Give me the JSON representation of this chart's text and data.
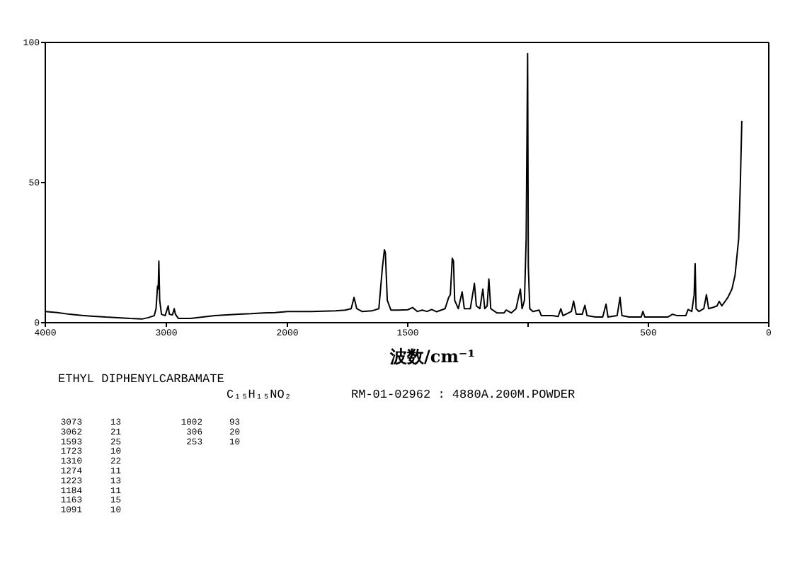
{
  "chart_data": [
    {
      "type": "line",
      "xlim": [
        4000,
        2000
      ],
      "xticks": [
        4000,
        3000,
        2000
      ],
      "ylim": [
        0,
        100
      ],
      "yticks": [
        0,
        50,
        100
      ],
      "marker": "none",
      "line_style": "solid",
      "series": [
        {
          "color": "#000000",
          "x": [
            4000,
            3900,
            3800,
            3700,
            3600,
            3500,
            3400,
            3300,
            3200,
            3150,
            3100,
            3085,
            3073,
            3067,
            3062,
            3055,
            3040,
            3010,
            2985,
            2975,
            2950,
            2935,
            2925,
            2900,
            2800,
            2700,
            2600,
            2500,
            2400,
            2300,
            2200,
            2100,
            2000
          ],
          "values": [
            4,
            3.6,
            3,
            2.6,
            2.3,
            2,
            1.8,
            1.5,
            1.3,
            1.8,
            2.5,
            5,
            13,
            12,
            22,
            8,
            3,
            2.5,
            6,
            3,
            2.8,
            5,
            3,
            1.5,
            1.5,
            2,
            2.5,
            2.8,
            3,
            3.2,
            3.5,
            3.6,
            4
          ]
        }
      ],
      "annotations": [
        "ETHYL DIPHENYLCARBAMATE",
        "C₁₅H₁₅NO₂",
        "RM-01-02962 : 4880A.200M.POWDER",
        "3073",
        "13",
        "3062",
        "21",
        "1593",
        "25",
        "1723",
        "10",
        "1310",
        "22",
        "1274",
        "11",
        "1223",
        "13",
        "1184",
        "11",
        "1163",
        "15",
        "1091",
        "10",
        "1002",
        "93",
        "306",
        "20",
        "253",
        "10"
      ]
    },
    {
      "type": "line",
      "xlabel": "波数/cm⁻¹",
      "xlim": [
        2000,
        0
      ],
      "xticks": [
        {
          "value": 2000,
          "label": null
        },
        1500,
        {
          "value": 1000,
          "label": null
        },
        500,
        0
      ],
      "ylim": [
        0,
        100
      ],
      "tick_labels": "x",
      "marker": "none",
      "line_style": "solid",
      "series": [
        {
          "color": "#000000",
          "x": [
            2000,
            1900,
            1800,
            1760,
            1735,
            1723,
            1712,
            1690,
            1650,
            1620,
            1605,
            1597,
            1593,
            1585,
            1570,
            1540,
            1500,
            1480,
            1460,
            1440,
            1420,
            1400,
            1380,
            1345,
            1330,
            1323,
            1315,
            1310,
            1305,
            1290,
            1274,
            1265,
            1250,
            1240,
            1223,
            1215,
            1200,
            1188,
            1180,
            1170,
            1163,
            1155,
            1130,
            1100,
            1091,
            1070,
            1050,
            1040,
            1032,
            1025,
            1015,
            1008,
            1004,
            1002,
            999,
            993,
            980,
            954,
            945,
            900,
            875,
            864,
            855,
            820,
            811,
            800,
            775,
            764,
            755,
            720,
            690,
            676,
            668,
            630,
            618,
            610,
            580,
            530,
            523,
            515,
            480,
            420,
            400,
            380,
            345,
            335,
            320,
            310,
            306,
            302,
            290,
            270,
            259,
            250,
            230,
            215,
            206,
            195,
            170,
            153,
            140,
            125,
            118,
            112
          ],
          "values": [
            4,
            4,
            4.2,
            4.5,
            5,
            9,
            5,
            4,
            4.2,
            5,
            20,
            26,
            25,
            8,
            4.5,
            4.5,
            4.6,
            5.4,
            4,
            4.5,
            4,
            4.7,
            3.9,
            5,
            9,
            10,
            23,
            22,
            8,
            5,
            11,
            5,
            5,
            5,
            14,
            6,
            5,
            12,
            5,
            6,
            15.6,
            5,
            3.5,
            3.5,
            4.5,
            3.5,
            5,
            9,
            12,
            5,
            8,
            30,
            73,
            96,
            20,
            5,
            4,
            4.5,
            2.5,
            2.5,
            2.2,
            5,
            2.5,
            4,
            7.7,
            3,
            3,
            6.2,
            2.5,
            2,
            2,
            6.6,
            2,
            2.5,
            9,
            2.5,
            2,
            2,
            4,
            2,
            2,
            2,
            3,
            2.5,
            2.5,
            4.7,
            4,
            10,
            21,
            5,
            4,
            5,
            10,
            5,
            5.5,
            6,
            7.6,
            6,
            9,
            12,
            17,
            30,
            50,
            72
          ]
        }
      ]
    }
  ]
}
